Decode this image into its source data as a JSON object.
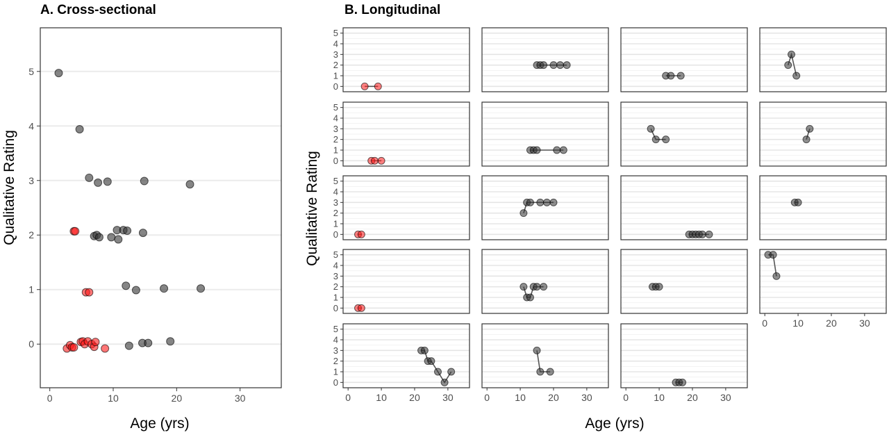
{
  "chart_data": [
    {
      "type": "scatter",
      "title": "A. Cross-sectional",
      "xlabel": "Age (yrs)",
      "ylabel": "Qualitative Rating",
      "xlim": [
        -1.5,
        36.5
      ],
      "ylim": [
        -0.8,
        5.8
      ],
      "xticks": [
        0,
        10,
        20,
        30
      ],
      "yticks": [
        0,
        1,
        2,
        3,
        4,
        5
      ],
      "grid": "horizontal-major",
      "colors": {
        "gray": "#333333",
        "red": "#ff1a1a"
      },
      "points": [
        {
          "x": 1.4,
          "y": 4.97,
          "c": "gray"
        },
        {
          "x": 4.7,
          "y": 3.94,
          "c": "gray"
        },
        {
          "x": 6.2,
          "y": 3.05,
          "c": "gray"
        },
        {
          "x": 7.6,
          "y": 2.96,
          "c": "gray"
        },
        {
          "x": 9.1,
          "y": 2.98,
          "c": "gray"
        },
        {
          "x": 14.9,
          "y": 2.99,
          "c": "gray"
        },
        {
          "x": 22.1,
          "y": 2.93,
          "c": "gray"
        },
        {
          "x": 3.8,
          "y": 2.07,
          "c": "red"
        },
        {
          "x": 4.0,
          "y": 2.07,
          "c": "red"
        },
        {
          "x": 7.0,
          "y": 1.98,
          "c": "gray"
        },
        {
          "x": 7.4,
          "y": 2.0,
          "c": "gray"
        },
        {
          "x": 7.8,
          "y": 1.96,
          "c": "gray"
        },
        {
          "x": 9.7,
          "y": 1.96,
          "c": "gray"
        },
        {
          "x": 10.6,
          "y": 2.09,
          "c": "gray"
        },
        {
          "x": 10.8,
          "y": 1.92,
          "c": "gray"
        },
        {
          "x": 11.6,
          "y": 2.09,
          "c": "gray"
        },
        {
          "x": 12.2,
          "y": 2.08,
          "c": "gray"
        },
        {
          "x": 14.7,
          "y": 2.04,
          "c": "gray"
        },
        {
          "x": 5.7,
          "y": 0.95,
          "c": "red"
        },
        {
          "x": 6.2,
          "y": 0.95,
          "c": "red"
        },
        {
          "x": 12.0,
          "y": 1.07,
          "c": "gray"
        },
        {
          "x": 13.6,
          "y": 0.99,
          "c": "gray"
        },
        {
          "x": 18.0,
          "y": 1.02,
          "c": "gray"
        },
        {
          "x": 23.8,
          "y": 1.02,
          "c": "gray"
        },
        {
          "x": 2.7,
          "y": -0.08,
          "c": "red"
        },
        {
          "x": 3.2,
          "y": -0.02,
          "c": "red"
        },
        {
          "x": 3.5,
          "y": -0.06,
          "c": "red"
        },
        {
          "x": 3.8,
          "y": -0.06,
          "c": "red"
        },
        {
          "x": 4.9,
          "y": 0.04,
          "c": "red"
        },
        {
          "x": 5.2,
          "y": 0.05,
          "c": "red"
        },
        {
          "x": 5.5,
          "y": 0.0,
          "c": "red"
        },
        {
          "x": 6.0,
          "y": 0.05,
          "c": "red"
        },
        {
          "x": 6.6,
          "y": 0.0,
          "c": "red"
        },
        {
          "x": 7.0,
          "y": -0.05,
          "c": "red"
        },
        {
          "x": 7.2,
          "y": 0.04,
          "c": "red"
        },
        {
          "x": 8.7,
          "y": -0.08,
          "c": "red"
        },
        {
          "x": 12.5,
          "y": -0.03,
          "c": "gray"
        },
        {
          "x": 14.6,
          "y": 0.02,
          "c": "gray"
        },
        {
          "x": 15.5,
          "y": 0.02,
          "c": "gray"
        },
        {
          "x": 19.0,
          "y": 0.05,
          "c": "gray"
        }
      ]
    },
    {
      "type": "line",
      "title": "B. Longitudinal",
      "xlabel": "Age (yrs)",
      "ylabel": "Qualitative Rating",
      "xlim": [
        -1.5,
        36.5
      ],
      "ylim": [
        -0.5,
        5.5
      ],
      "xticks": [
        0,
        10,
        20,
        30
      ],
      "yticks": [
        0,
        1,
        2,
        3,
        4,
        5
      ],
      "grid": "horizontal-major-and-minor",
      "layout": "facet grid, 4 columns x 5 rows; x axis labels shown on bottom panel of each column",
      "colors": {
        "gray": "#333333",
        "red": "#ff1a1a"
      },
      "facets": [
        {
          "row": 0,
          "col": 0,
          "c": "red",
          "points": [
            [
              5,
              0
            ],
            [
              9,
              0
            ]
          ]
        },
        {
          "row": 0,
          "col": 1,
          "c": "gray",
          "points": [
            [
              15,
              2
            ],
            [
              16,
              2
            ],
            [
              17,
              2
            ],
            [
              20,
              2
            ],
            [
              22,
              2
            ],
            [
              24,
              2
            ]
          ]
        },
        {
          "row": 0,
          "col": 2,
          "c": "gray",
          "points": [
            [
              12,
              1
            ],
            [
              13.5,
              1
            ],
            [
              16.5,
              1
            ]
          ]
        },
        {
          "row": 0,
          "col": 3,
          "c": "gray",
          "points": [
            [
              7,
              2
            ],
            [
              8,
              3
            ],
            [
              9.5,
              1
            ]
          ]
        },
        {
          "row": 1,
          "col": 0,
          "c": "red",
          "points": [
            [
              7,
              0
            ],
            [
              8,
              0
            ],
            [
              10,
              0
            ]
          ]
        },
        {
          "row": 1,
          "col": 1,
          "c": "gray",
          "points": [
            [
              13,
              1
            ],
            [
              14,
              1
            ],
            [
              15,
              1
            ],
            [
              21,
              1
            ],
            [
              23,
              1
            ]
          ]
        },
        {
          "row": 1,
          "col": 2,
          "c": "gray",
          "points": [
            [
              7.5,
              3
            ],
            [
              9,
              2
            ],
            [
              12,
              2
            ]
          ]
        },
        {
          "row": 1,
          "col": 3,
          "c": "gray",
          "points": [
            [
              12.5,
              2
            ],
            [
              13.5,
              3
            ]
          ]
        },
        {
          "row": 2,
          "col": 0,
          "c": "red",
          "points": [
            [
              3,
              0
            ],
            [
              4,
              0
            ]
          ]
        },
        {
          "row": 2,
          "col": 1,
          "c": "gray",
          "points": [
            [
              11,
              2
            ],
            [
              12,
              3
            ],
            [
              13,
              3
            ],
            [
              16,
              3
            ],
            [
              18,
              3
            ],
            [
              20,
              3
            ]
          ]
        },
        {
          "row": 2,
          "col": 2,
          "c": "gray",
          "points": [
            [
              19,
              0
            ],
            [
              20,
              0
            ],
            [
              21,
              0
            ],
            [
              22,
              0
            ],
            [
              23,
              0
            ],
            [
              25,
              0
            ]
          ]
        },
        {
          "row": 2,
          "col": 3,
          "c": "gray",
          "points": [
            [
              9,
              3
            ],
            [
              10,
              3
            ]
          ]
        },
        {
          "row": 3,
          "col": 0,
          "c": "red",
          "points": [
            [
              3,
              0
            ],
            [
              4,
              0
            ]
          ]
        },
        {
          "row": 3,
          "col": 1,
          "c": "gray",
          "points": [
            [
              11,
              2
            ],
            [
              12,
              1
            ],
            [
              13,
              1
            ],
            [
              14,
              2
            ],
            [
              15,
              2
            ],
            [
              17,
              2
            ]
          ]
        },
        {
          "row": 3,
          "col": 2,
          "c": "gray",
          "points": [
            [
              8,
              2
            ],
            [
              9,
              2
            ],
            [
              10,
              2
            ]
          ]
        },
        {
          "row": 3,
          "col": 3,
          "c": "gray",
          "points": [
            [
              1,
              5
            ],
            [
              2.5,
              5
            ],
            [
              3.5,
              3
            ]
          ]
        },
        {
          "row": 4,
          "col": 0,
          "c": "gray",
          "points": [
            [
              22,
              3
            ],
            [
              23,
              3
            ],
            [
              24,
              2
            ],
            [
              25,
              2
            ],
            [
              27,
              1
            ],
            [
              29,
              0
            ],
            [
              31,
              1
            ]
          ]
        },
        {
          "row": 4,
          "col": 1,
          "c": "gray",
          "points": [
            [
              15,
              3
            ],
            [
              16,
              1
            ],
            [
              19,
              1
            ]
          ]
        },
        {
          "row": 4,
          "col": 2,
          "c": "gray",
          "points": [
            [
              15,
              0
            ],
            [
              16,
              0
            ],
            [
              17,
              0
            ]
          ]
        }
      ]
    }
  ]
}
